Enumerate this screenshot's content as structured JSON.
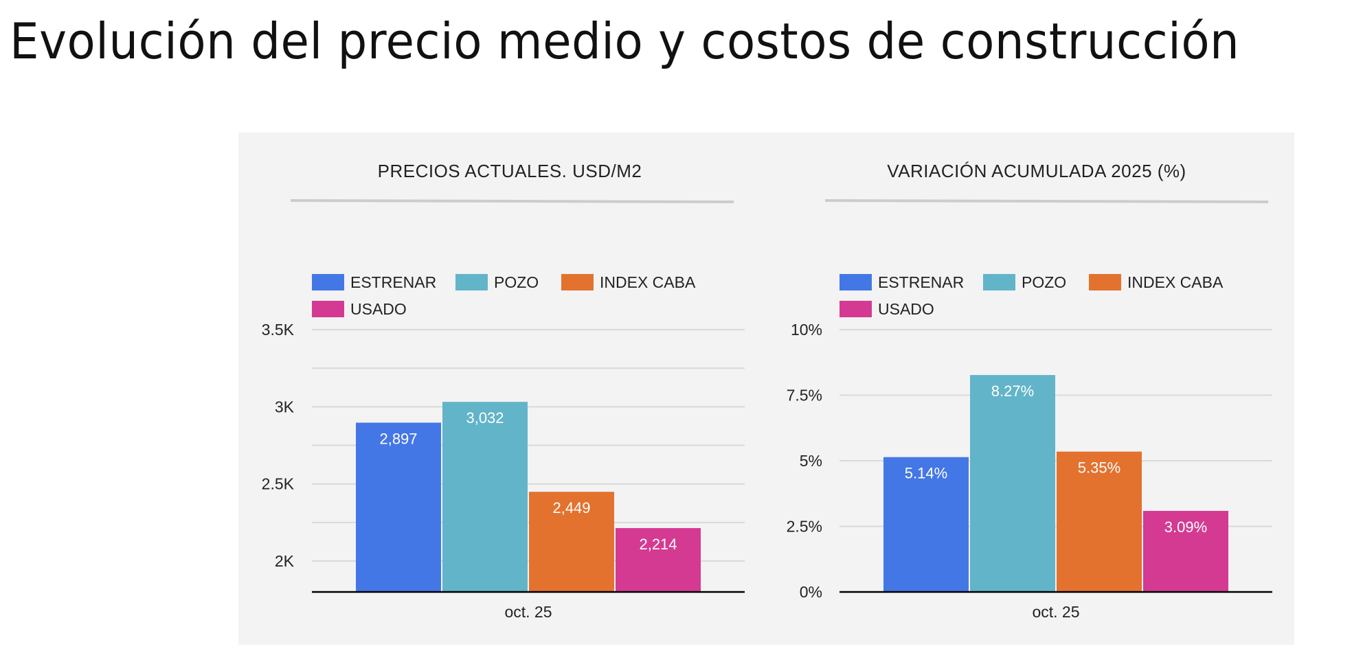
{
  "page_title": "Evolución del precio medio y costos de construcción",
  "colors": {
    "panel_bg": "#f3f3f3",
    "estrenar": "#4477e6",
    "pozo": "#62b4c9",
    "index_caba": "#e3722f",
    "usado": "#d43a91",
    "grid": "#d9d9d9",
    "axis": "#000000"
  },
  "chart_data": [
    {
      "type": "bar",
      "title": "PRECIOS ACTUALES. USD/M2",
      "categories": [
        "oct. 25"
      ],
      "series": [
        {
          "name": "ESTRENAR",
          "values": [
            2897
          ],
          "labels": [
            "2,897"
          ]
        },
        {
          "name": "POZO",
          "values": [
            3032
          ],
          "labels": [
            "3,032"
          ]
        },
        {
          "name": "INDEX CABA",
          "values": [
            2449
          ],
          "labels": [
            "2,449"
          ]
        },
        {
          "name": "USADO",
          "values": [
            2214
          ],
          "labels": [
            "2,214"
          ]
        }
      ],
      "ylim": [
        1800,
        3500
      ],
      "yticks": [
        2000,
        2500,
        3000,
        3500
      ],
      "ytick_labels": [
        "2K",
        "2.5K",
        "3K",
        "3.5K"
      ],
      "minor_gridlines": [
        2250,
        2750,
        3250
      ],
      "grid": true,
      "legend_position": "top"
    },
    {
      "type": "bar",
      "title": "VARIACIÓN ACUMULADA 2025 (%)",
      "categories": [
        "oct. 25"
      ],
      "series": [
        {
          "name": "ESTRENAR",
          "values": [
            5.14
          ],
          "labels": [
            "5.14%"
          ]
        },
        {
          "name": "POZO",
          "values": [
            8.27
          ],
          "labels": [
            "8.27%"
          ]
        },
        {
          "name": "INDEX CABA",
          "values": [
            5.35
          ],
          "labels": [
            "5.35%"
          ]
        },
        {
          "name": "USADO",
          "values": [
            3.09
          ],
          "labels": [
            "3.09%"
          ]
        }
      ],
      "ylim": [
        0,
        10
      ],
      "yticks": [
        0,
        2.5,
        5,
        7.5,
        10
      ],
      "ytick_labels": [
        "0%",
        "2.5%",
        "5%",
        "7.5%",
        "10%"
      ],
      "minor_gridlines": [],
      "grid": true,
      "legend_position": "top"
    }
  ]
}
